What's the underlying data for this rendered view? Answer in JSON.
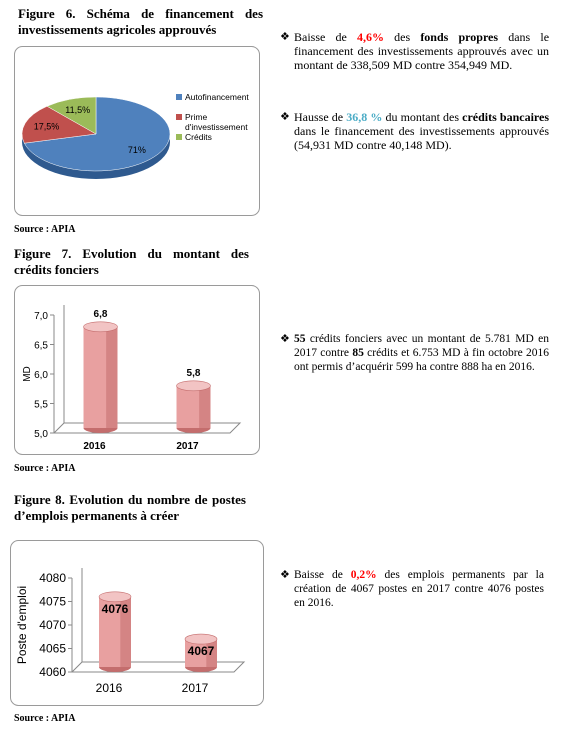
{
  "chart_data": [
    {
      "type": "pie",
      "title": "Figure 6. Schéma de financement des investissements agricoles approuvés",
      "categories": [
        "Autofinancement",
        "Prime d'investissement",
        "Crédits"
      ],
      "values": [
        71,
        17.5,
        11.5
      ],
      "value_labels": [
        "71%",
        "17,5%",
        "11,5%"
      ],
      "colors": [
        "#4f81bd",
        "#c0504d",
        "#9bbb59"
      ],
      "legend": "right",
      "source": "Source : APIA"
    },
    {
      "type": "bar",
      "title": "Figure 7. Evolution du montant des crédits fonciers",
      "categories": [
        "2016",
        "2017"
      ],
      "values": [
        6.8,
        5.8
      ],
      "value_labels": [
        "6,8",
        "5,8"
      ],
      "ylabel": "MD",
      "ylim": [
        5,
        7
      ],
      "yticks": [
        {
          "value": 5,
          "label": "5,0"
        },
        {
          "value": 5.5,
          "label": "5,5"
        },
        {
          "value": 6,
          "label": "6,0"
        },
        {
          "value": 6.5,
          "label": "6,5"
        },
        {
          "value": 7,
          "label": "7,0"
        }
      ],
      "color": "#e8a0a0",
      "source": "Source : APIA"
    },
    {
      "type": "bar",
      "title": "Figure 8. Evolution du nombre de postes d’emplois permanents à créer",
      "categories": [
        "2016",
        "2017"
      ],
      "values": [
        4076,
        4067
      ],
      "ylabel": "Poste d'emploi",
      "ylim": [
        4060,
        4080
      ],
      "yticks": [
        4060,
        4065,
        4070,
        4075,
        4080
      ],
      "color": "#e8a0a0",
      "source": "Source : APIA"
    }
  ],
  "paragraphs": [
    [
      {
        "text": "Baisse de "
      },
      {
        "text": "4,6%",
        "bold": true,
        "color": "#ff0000"
      },
      {
        "text": " des "
      },
      {
        "text": "fonds propres",
        "bold": true
      },
      {
        "text": " dans le financement des investissements approuvés avec un montant de 338,509 MD contre 354,949 MD."
      }
    ],
    [
      {
        "text": "Hausse de "
      },
      {
        "text": "36,8 %",
        "bold": true,
        "color": "#4bacc6"
      },
      {
        "text": " du montant des "
      },
      {
        "text": "crédits bancaires",
        "bold": true
      },
      {
        "text": " dans le financement des investissements approuvés (54,931 MD contre 40,148 MD)."
      }
    ],
    [
      {
        "text": "55",
        "bold": true
      },
      {
        "text": " crédits fonciers avec un montant de 5.781 MD en 2017 contre "
      },
      {
        "text": "85",
        "bold": true
      },
      {
        "text": " crédits et 6.753 MD à fin octobre 2016 ont permis d’acquérir 599 ha contre 888 ha en 2016."
      }
    ],
    [
      {
        "text": "Baisse de "
      },
      {
        "text": "0,2%",
        "bold": true,
        "color": "#ff0000"
      },
      {
        "text": " des emplois permanents par la création de 4067 postes en 2017 contre 4076 postes en 2016."
      }
    ]
  ]
}
